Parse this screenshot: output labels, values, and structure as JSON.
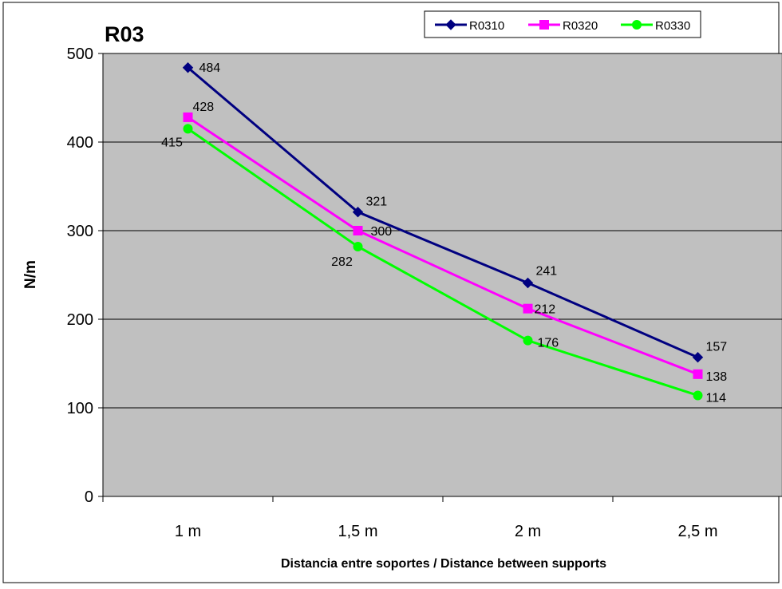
{
  "chart_data": {
    "type": "line",
    "title": "R03",
    "xlabel": "Distancia entre soportes / Distance between supports",
    "ylabel": "N/m",
    "categories": [
      "1 m",
      "1,5 m",
      "2 m",
      "2,5 m"
    ],
    "ylim": [
      0,
      500
    ],
    "yticks": [
      0,
      100,
      200,
      300,
      400,
      500
    ],
    "grid": true,
    "legend_position": "top-right",
    "plot_background": "#c0c0c0",
    "series": [
      {
        "name": "R0310",
        "values": [
          484,
          321,
          241,
          157
        ],
        "color": "#000080",
        "marker": "diamond"
      },
      {
        "name": "R0320",
        "values": [
          428,
          300,
          212,
          138
        ],
        "color": "#ff00ff",
        "marker": "square"
      },
      {
        "name": "R0330",
        "values": [
          415,
          282,
          176,
          114
        ],
        "color": "#00ff00",
        "marker": "circle"
      }
    ]
  }
}
